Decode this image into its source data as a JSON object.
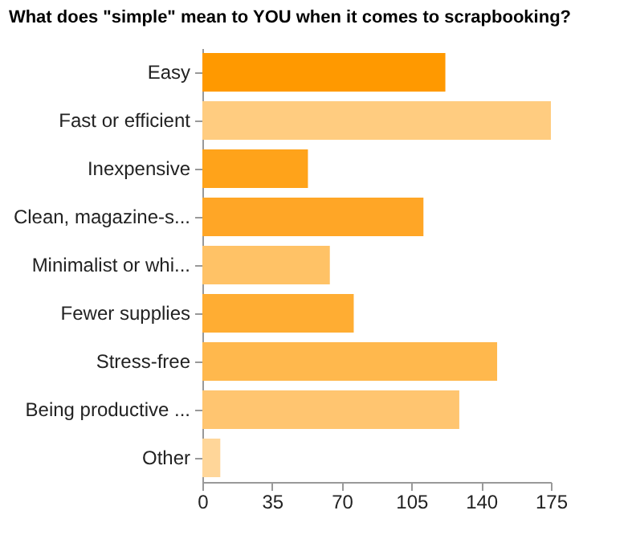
{
  "chart_data": {
    "type": "bar",
    "orientation": "horizontal",
    "title": "What does \"simple\" mean to YOU when it comes to scrapbooking?",
    "categories": [
      "Easy",
      "Fast or efficient",
      "Inexpensive",
      "Clean, magazine-s...",
      "Minimalist or whi...",
      "Fewer supplies",
      "Stress-free",
      "Being productive ...",
      "Other"
    ],
    "values": [
      122,
      175,
      53,
      111,
      64,
      76,
      148,
      129,
      9
    ],
    "colors": [
      "#ff9900",
      "#ffcc80",
      "#ffa31a",
      "#ffa626",
      "#ffc266",
      "#ffad33",
      "#ffb84d",
      "#ffc570",
      "#ffd699"
    ],
    "xlim": [
      0,
      175
    ],
    "xticks": [
      0,
      35,
      70,
      105,
      140,
      175
    ],
    "grid": false,
    "legend": false
  }
}
